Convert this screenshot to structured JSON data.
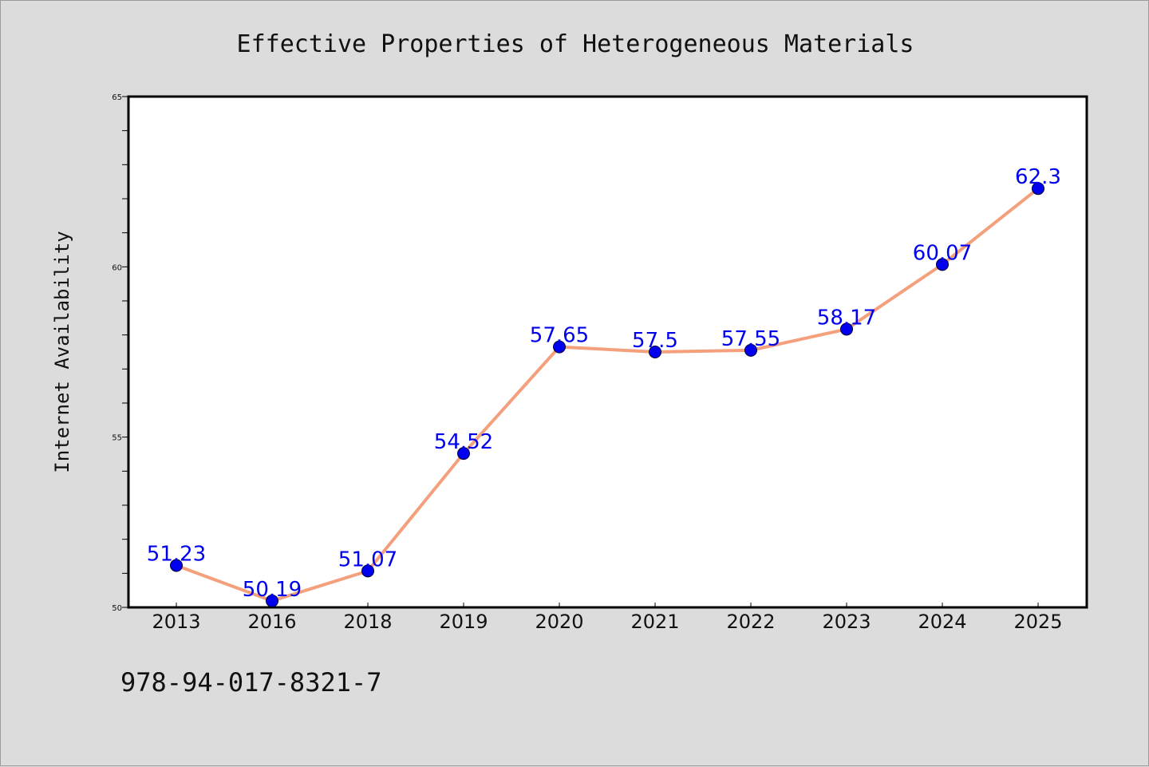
{
  "chart_data": {
    "type": "line",
    "title": "Effective Properties of Heterogeneous Materials",
    "xlabel": "",
    "ylabel": "Internet Availability",
    "categories": [
      "2013",
      "2016",
      "2018",
      "2019",
      "2020",
      "2021",
      "2022",
      "2023",
      "2024",
      "2025"
    ],
    "series": [
      {
        "values": [
          51.23,
          50.19,
          51.07,
          54.52,
          57.65,
          57.5,
          57.55,
          58.17,
          60.07,
          62.3
        ],
        "labels": [
          "51.23",
          "50.19",
          "51.07",
          "54.52",
          "57.65",
          "57.5",
          "57.55",
          "58.17",
          "60.07",
          "62.3"
        ]
      }
    ],
    "ylim": [
      50,
      65
    ],
    "yticks": [
      "50",
      "55",
      "60",
      "65"
    ],
    "grid": false,
    "colors": {
      "line": "#f4a07c",
      "marker": "#0000ee",
      "label": "#0000ee",
      "background": "#dcdcdc",
      "plot_bg": "#ffffff"
    }
  },
  "footer": {
    "isbn": "978-94-017-8321-7"
  }
}
